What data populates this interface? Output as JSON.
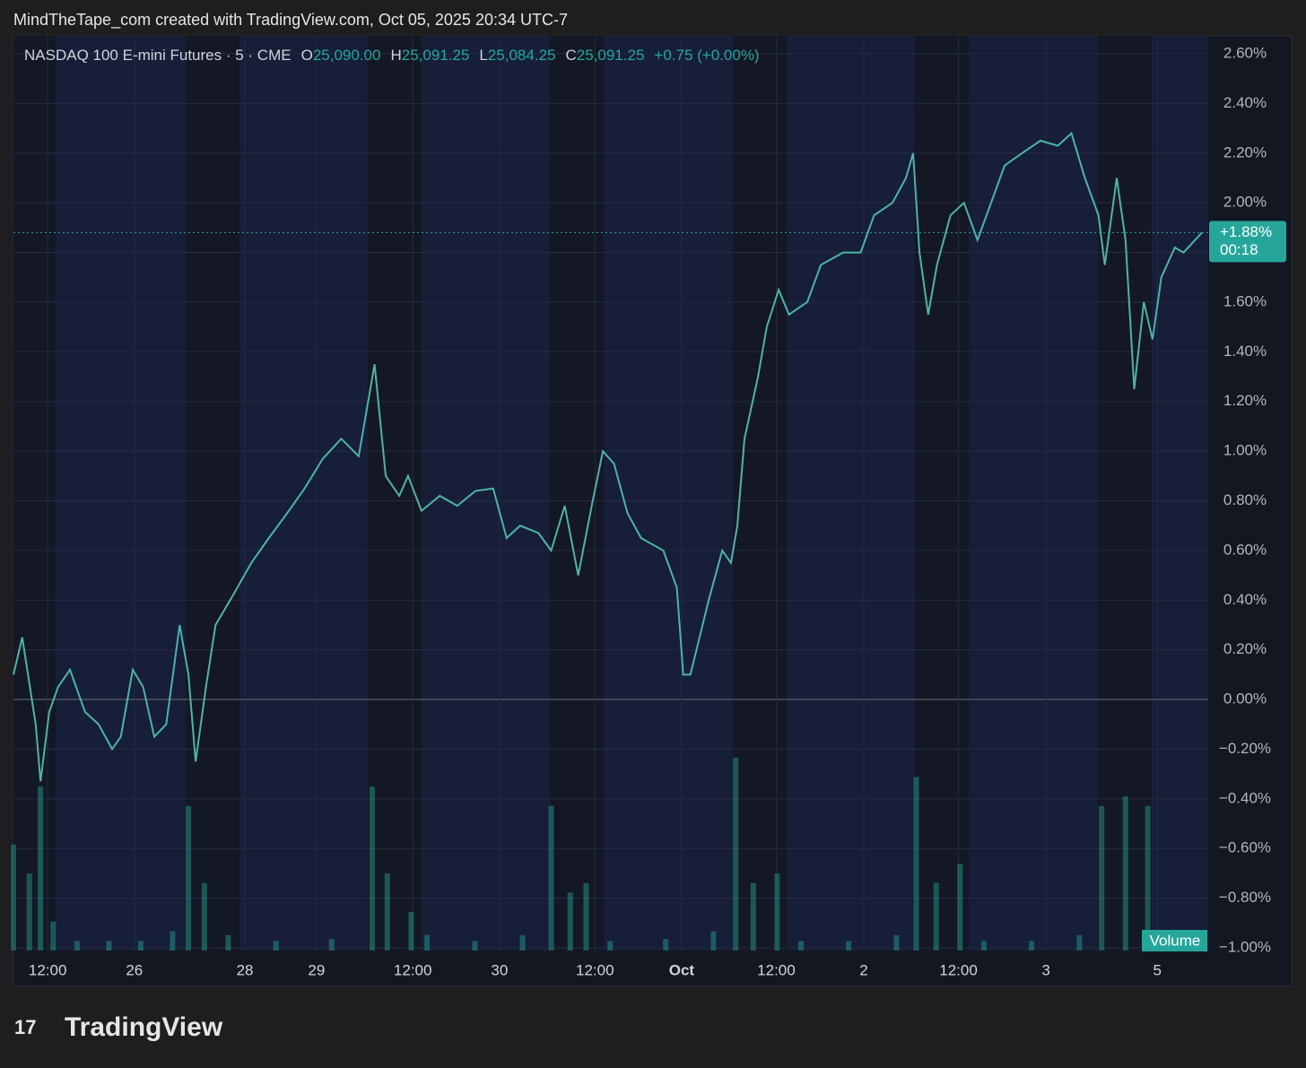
{
  "header": {
    "caption": "MindTheTape_com created with TradingView.com, Oct 05, 2025 20:34 UTC-7",
    "logo": "TradingView"
  },
  "chart_data": {
    "type": "line",
    "legend": {
      "symbol": "NASDAQ 100 E-mini Futures · 5 · CME",
      "o_key": "O",
      "o": "25,090.00",
      "h_key": "H",
      "h": "25,091.25",
      "l_key": "L",
      "l": "25,084.25",
      "c_key": "C",
      "c": "25,091.25",
      "change": "+0.75 (+0.00%)"
    },
    "x": [
      0,
      1.1,
      2.8,
      3.4,
      4.5,
      5.6,
      7.1,
      9.0,
      10.7,
      12.4,
      13.5,
      15.0,
      16.3,
      17.7,
      19.2,
      20.9,
      22.0,
      22.9,
      24.2,
      25.4,
      27.6,
      29.9,
      32.1,
      34.4,
      36.6,
      38.9,
      41.2,
      43.4,
      45.4,
      46.8,
      48.5,
      49.6,
      51.3,
      53.6,
      55.8,
      58.1,
      60.3,
      62.0,
      63.7,
      66.0,
      67.6,
      69.3,
      71.0,
      72.7,
      74.1,
      75.5,
      77.2,
      78.9,
      81.7,
      83.4,
      84.2,
      85.1,
      87.4,
      89.1,
      90.2,
      91.0,
      91.9,
      93.6,
      94.7,
      96.2,
      97.5,
      99.8,
      101.5,
      104.3,
      106.5,
      108.2,
      110.5,
      112.2,
      113.1,
      113.9,
      115.0,
      116.1,
      117.8,
      119.5,
      121.2,
      122.9,
      124.6,
      126.8,
      129.1,
      131.3,
      133.0,
      134.7,
      136.4,
      137.2,
      138.7,
      139.8,
      140.9,
      142.1,
      143.2,
      144.3,
      146.0,
      147.1,
      149.4
    ],
    "series": [
      {
        "color": "#4fb3a6",
        "values": [
          0.1,
          0.25,
          -0.1,
          -0.33,
          -0.05,
          0.05,
          0.12,
          -0.05,
          -0.1,
          -0.2,
          -0.15,
          0.12,
          0.05,
          -0.15,
          -0.1,
          0.3,
          0.1,
          -0.25,
          0.05,
          0.3,
          0.42,
          0.55,
          0.65,
          0.75,
          0.85,
          0.97,
          1.05,
          0.98,
          1.35,
          0.9,
          0.82,
          0.9,
          0.76,
          0.82,
          0.78,
          0.84,
          0.85,
          0.65,
          0.7,
          0.67,
          0.6,
          0.78,
          0.5,
          0.78,
          1.0,
          0.95,
          0.75,
          0.65,
          0.6,
          0.45,
          0.1,
          0.1,
          0.4,
          0.6,
          0.55,
          0.7,
          1.05,
          1.3,
          1.5,
          1.65,
          1.55,
          1.6,
          1.75,
          1.8,
          1.8,
          1.95,
          2.0,
          2.1,
          2.2,
          1.8,
          1.55,
          1.75,
          1.95,
          2.0,
          1.85,
          2.0,
          2.15,
          2.2,
          2.25,
          2.23,
          2.28,
          2.1,
          1.95,
          1.75,
          2.1,
          1.85,
          1.25,
          1.6,
          1.45,
          1.7,
          1.82,
          1.8,
          1.88
        ]
      }
    ],
    "volume": {
      "name": "Volume",
      "color": "#26a69a",
      "x": [
        0,
        2,
        3.4,
        5,
        8,
        12,
        16,
        20,
        22,
        24,
        27,
        33,
        40,
        45.1,
        47,
        50,
        52,
        58,
        64,
        67.6,
        70,
        72,
        75,
        82,
        88,
        90.8,
        93,
        96,
        99,
        105,
        111,
        113.5,
        116,
        119,
        122,
        128,
        134,
        136.8,
        139.8,
        142.6,
        145,
        149
      ],
      "values": [
        55,
        40,
        85,
        15,
        5,
        5,
        5,
        10,
        75,
        35,
        8,
        5,
        6,
        85,
        40,
        20,
        8,
        5,
        8,
        75,
        30,
        35,
        5,
        6,
        10,
        100,
        35,
        40,
        5,
        5,
        8,
        90,
        35,
        45,
        5,
        5,
        8,
        75,
        80,
        75,
        5,
        5
      ]
    },
    "last": {
      "value": 1.88,
      "label": "+1.88%"
    },
    "countdown": "00:18",
    "xlim": [
      0,
      150.2
    ],
    "ylim": [
      -1.0,
      2.6
    ],
    "y2lim": [
      0,
      100
    ],
    "xticks": [
      {
        "value": 4.3,
        "label": "12:00"
      },
      {
        "value": 15.2,
        "label": "26"
      },
      {
        "value": 29.1,
        "label": "28"
      },
      {
        "value": 38.1,
        "label": "29"
      },
      {
        "value": 50.2,
        "label": "12:00"
      },
      {
        "value": 61.1,
        "label": "30"
      },
      {
        "value": 73.1,
        "label": "12:00"
      },
      {
        "value": 84.0,
        "label": "Oct"
      },
      {
        "value": 95.9,
        "label": "12:00"
      },
      {
        "value": 106.9,
        "label": "2"
      },
      {
        "value": 118.8,
        "label": "12:00"
      },
      {
        "value": 129.8,
        "label": "3"
      },
      {
        "value": 143.8,
        "label": "5"
      }
    ],
    "yticks": [
      {
        "value": 2.6,
        "label": "2.60%"
      },
      {
        "value": 2.4,
        "label": "2.40%"
      },
      {
        "value": 2.2,
        "label": "2.20%"
      },
      {
        "value": 2.0,
        "label": "2.00%"
      },
      {
        "value": 1.8,
        "label": "1.80%"
      },
      {
        "value": 1.6,
        "label": "1.60%"
      },
      {
        "value": 1.4,
        "label": "1.40%"
      },
      {
        "value": 1.2,
        "label": "1.20%"
      },
      {
        "value": 1.0,
        "label": "1.00%"
      },
      {
        "value": 0.8,
        "label": "0.80%"
      },
      {
        "value": 0.6,
        "label": "0.60%"
      },
      {
        "value": 0.4,
        "label": "0.40%"
      },
      {
        "value": 0.2,
        "label": "0.20%"
      },
      {
        "value": 0,
        "label": "0.00%"
      },
      {
        "value": -0.2,
        "label": "−0.20%"
      },
      {
        "value": -0.4,
        "label": "−0.40%"
      },
      {
        "value": -0.6,
        "label": "−0.60%"
      },
      {
        "value": -0.8,
        "label": "−0.80%"
      },
      {
        "value": -1.0,
        "label": "−1.00%"
      }
    ],
    "grid": true
  }
}
